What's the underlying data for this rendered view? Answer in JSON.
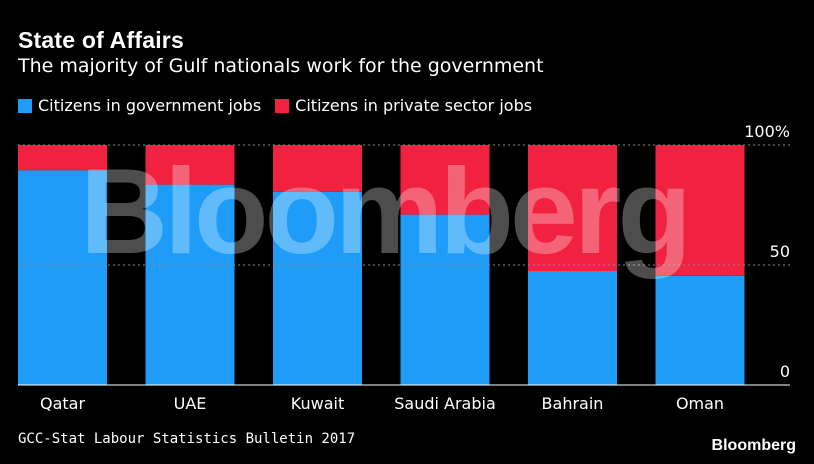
{
  "title": "State of Affairs",
  "subtitle": "The majority of Gulf nationals work for the government",
  "source": "GCC-Stat Labour Statistics Bulletin 2017",
  "brand": "Bloomberg",
  "watermark": "Bloomberg",
  "colors": {
    "government": "#1e9cf7",
    "private": "#f0223f",
    "background": "#000000",
    "grid": "#888888"
  },
  "chart_data": {
    "type": "bar",
    "stacked": true,
    "title": "State of Affairs",
    "subtitle": "The majority of Gulf nationals work for the government",
    "categories": [
      "Qatar",
      "UAE",
      "Kuwait",
      "Saudi Arabia",
      "Bahrain",
      "Oman"
    ],
    "series": [
      {
        "name": "Citizens in government jobs",
        "values": [
          89.5,
          83.5,
          80.5,
          71.0,
          47.5,
          45.5
        ]
      },
      {
        "name": "Citizens in private sector jobs",
        "values": [
          10.5,
          16.5,
          19.5,
          29.0,
          52.5,
          54.5
        ]
      }
    ],
    "ylim": [
      0,
      100
    ],
    "yticks": [
      "0",
      "50",
      "100%"
    ],
    "xlabel": "",
    "ylabel": "",
    "grid": true,
    "legend": "top-left"
  }
}
